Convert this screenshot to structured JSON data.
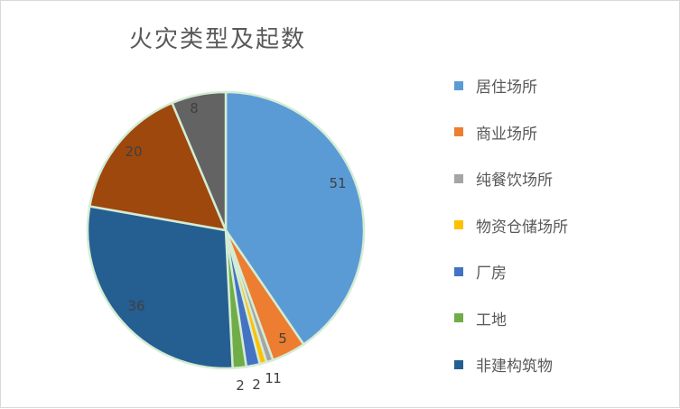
{
  "chart_data": {
    "type": "pie",
    "title": "火灾类型及起数",
    "categories": [
      "居住场所",
      "商业场所",
      "纯餐饮场所",
      "物资仓储场所",
      "厂房",
      "工地",
      "非建构筑物",
      "",
      ""
    ],
    "values": [
      51,
      5,
      1,
      1,
      2,
      2,
      36,
      20,
      8
    ],
    "colors": [
      "#5b9bd5",
      "#ed7d31",
      "#a5a5a5",
      "#ffc000",
      "#4472c4",
      "#70ad47",
      "#255e91",
      "#9e480e",
      "#636363"
    ],
    "data_labels": [
      "51",
      "5",
      "1",
      "1",
      "2",
      "2",
      "36",
      "20",
      "8"
    ],
    "legend_position": "right"
  },
  "legend": [
    {
      "label": "居住场所",
      "color": "#5b9bd5"
    },
    {
      "label": "商业场所",
      "color": "#ed7d31"
    },
    {
      "label": "纯餐饮场所",
      "color": "#a5a5a5"
    },
    {
      "label": "物资仓储场所",
      "color": "#ffc000"
    },
    {
      "label": "厂房",
      "color": "#4472c4"
    },
    {
      "label": "工地",
      "color": "#70ad47"
    },
    {
      "label": "非建构筑物",
      "color": "#255e91"
    }
  ]
}
